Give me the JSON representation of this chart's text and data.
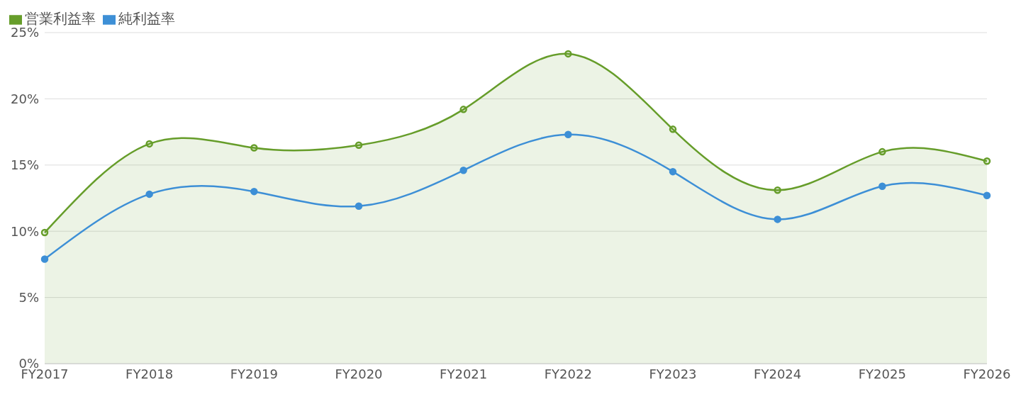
{
  "chart_data": {
    "type": "line",
    "categories": [
      "FY2017",
      "FY2018",
      "FY2019",
      "FY2020",
      "FY2021",
      "FY2022",
      "FY2023",
      "FY2024",
      "FY2025",
      "FY2026"
    ],
    "series": [
      {
        "name": "営業利益率",
        "type": "area",
        "color": "#669d2a",
        "values": [
          9.9,
          16.6,
          16.3,
          16.5,
          19.2,
          23.4,
          17.7,
          13.1,
          16.0,
          15.3
        ]
      },
      {
        "name": "純利益率",
        "color": "#3d8fd6",
        "values": [
          7.9,
          12.8,
          13.0,
          11.9,
          14.6,
          17.3,
          14.5,
          10.9,
          13.4,
          12.7
        ]
      }
    ],
    "ylim": [
      0,
      25
    ],
    "yticks": [
      {
        "value": 0,
        "label": "0%"
      },
      {
        "value": 5,
        "label": "5%"
      },
      {
        "value": 10,
        "label": "10%"
      },
      {
        "value": 15,
        "label": "15%"
      },
      {
        "value": 20,
        "label": "20%"
      },
      {
        "value": 25,
        "label": "25%"
      }
    ],
    "grid": "y",
    "legend": "top left",
    "marker": "circle",
    "line_style": "solid"
  }
}
